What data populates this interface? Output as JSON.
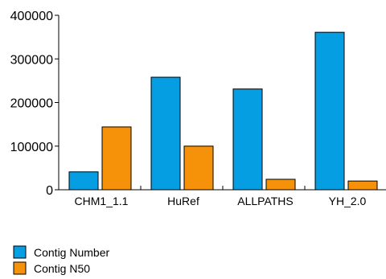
{
  "chart_data": {
    "type": "bar",
    "categories": [
      "CHM1_1.1",
      "HuRef",
      "ALLPATHS",
      "YH_2.0"
    ],
    "series": [
      {
        "name": "Contig Number",
        "values": [
          41000,
          258000,
          231000,
          361000
        ],
        "color": "#069ee3"
      },
      {
        "name": "Contig N50",
        "values": [
          144000,
          100000,
          24000,
          20000
        ],
        "color": "#f5920a"
      }
    ],
    "ylim": [
      0,
      400000
    ],
    "yticks": [
      "0",
      "100000",
      "200000",
      "300000",
      "400000"
    ],
    "grid": false,
    "legend_placement": "bottom-left"
  }
}
